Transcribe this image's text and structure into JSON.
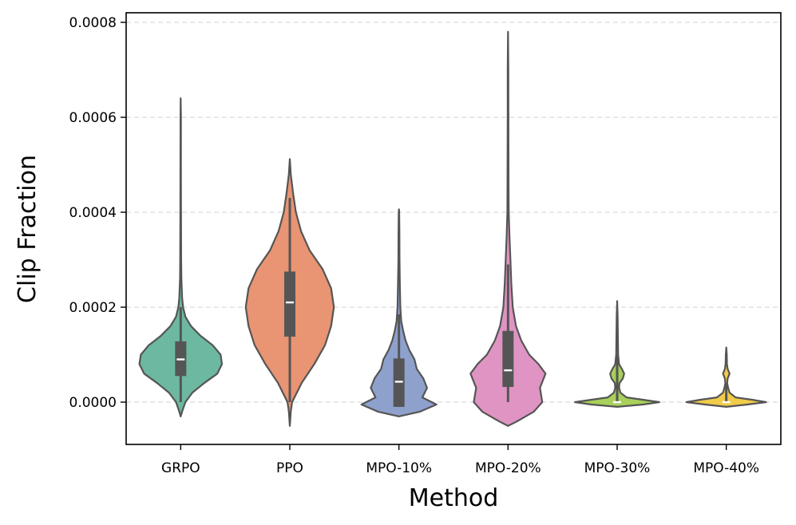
{
  "chart_data": {
    "type": "violin",
    "title": "",
    "xlabel": "Method",
    "ylabel": "Clip Fraction",
    "ylim": [
      -8.8e-05,
      0.000822
    ],
    "yticks": [
      0.0,
      0.0002,
      0.0004,
      0.0006,
      0.0008
    ],
    "ytick_labels": [
      "0.0000",
      "0.0002",
      "0.0004",
      "0.0006",
      "0.0008"
    ],
    "grid": "y-dashed",
    "categories": [
      "GRPO",
      "PPO",
      "MPO-10%",
      "MPO-20%",
      "MPO-30%",
      "MPO-40%"
    ],
    "series": [
      {
        "name": "GRPO",
        "color": "#6db8a1",
        "min": -3e-05,
        "max": 0.00064,
        "q1": 5.5e-05,
        "median": 9e-05,
        "q3": 0.000128,
        "whisker_low": 0.0,
        "whisker_high": 0.0002,
        "density": [
          [
            -3e-05,
            0
          ],
          [
            -2e-05,
            0.03
          ],
          [
            0.0,
            0.1
          ],
          [
            2e-05,
            0.25
          ],
          [
            4e-05,
            0.5
          ],
          [
            6e-05,
            0.78
          ],
          [
            8e-05,
            0.88
          ],
          [
            0.0001,
            0.85
          ],
          [
            0.00012,
            0.68
          ],
          [
            0.00014,
            0.42
          ],
          [
            0.00016,
            0.22
          ],
          [
            0.00018,
            0.1
          ],
          [
            0.0002,
            0.05
          ],
          [
            0.00022,
            0.03
          ],
          [
            0.00026,
            0.015
          ],
          [
            0.0003,
            0.01
          ],
          [
            0.0004,
            0.007
          ],
          [
            0.0005,
            0.005
          ],
          [
            0.0006,
            0.004
          ],
          [
            0.00064,
            0
          ]
        ]
      },
      {
        "name": "PPO",
        "color": "#e99473",
        "min": -5e-05,
        "max": 0.000512,
        "q1": 0.000138,
        "median": 0.00021,
        "q3": 0.000275,
        "whisker_low": 0.0,
        "whisker_high": 0.00043,
        "density": [
          [
            -5e-05,
            0
          ],
          [
            -2e-05,
            0.02
          ],
          [
            0.0,
            0.05
          ],
          [
            4e-05,
            0.25
          ],
          [
            8e-05,
            0.52
          ],
          [
            0.00012,
            0.75
          ],
          [
            0.00016,
            0.88
          ],
          [
            0.0002,
            0.94
          ],
          [
            0.00024,
            0.88
          ],
          [
            0.00028,
            0.7
          ],
          [
            0.00032,
            0.42
          ],
          [
            0.00036,
            0.24
          ],
          [
            0.0004,
            0.13
          ],
          [
            0.00044,
            0.07
          ],
          [
            0.00048,
            0.02
          ],
          [
            0.000512,
            0
          ]
        ]
      },
      {
        "name": "MPO-10%",
        "color": "#8ea1cc",
        "min": -3e-05,
        "max": 0.000406,
        "q1": -1e-05,
        "median": 4.3e-05,
        "q3": 9.2e-05,
        "whisker_low": -1e-05,
        "whisker_high": 0.000185,
        "density": [
          [
            -3e-05,
            0
          ],
          [
            -2e-05,
            0.45
          ],
          [
            -5e-06,
            0.8
          ],
          [
            1e-05,
            0.5
          ],
          [
            3e-05,
            0.6
          ],
          [
            5e-05,
            0.52
          ],
          [
            7e-05,
            0.38
          ],
          [
            9e-05,
            0.33
          ],
          [
            0.00011,
            0.22
          ],
          [
            0.00013,
            0.14
          ],
          [
            0.00015,
            0.09
          ],
          [
            0.00017,
            0.05
          ],
          [
            0.0002,
            0.03
          ],
          [
            0.00025,
            0.02
          ],
          [
            0.0003,
            0.012
          ],
          [
            0.00035,
            0.01
          ],
          [
            0.0004,
            0.005
          ],
          [
            0.000406,
            0
          ]
        ]
      },
      {
        "name": "MPO-20%",
        "color": "#e094c3",
        "min": -5e-05,
        "max": 0.00078,
        "q1": 3.2e-05,
        "median": 6.7e-05,
        "q3": 0.00015,
        "whisker_low": 0.0,
        "whisker_high": 0.00029,
        "density": [
          [
            -5e-05,
            0
          ],
          [
            -4e-05,
            0.2
          ],
          [
            -2e-05,
            0.55
          ],
          [
            0.0,
            0.73
          ],
          [
            3e-05,
            0.68
          ],
          [
            6e-05,
            0.8
          ],
          [
            8e-05,
            0.65
          ],
          [
            0.0001,
            0.45
          ],
          [
            0.00013,
            0.28
          ],
          [
            0.00016,
            0.17
          ],
          [
            0.0002,
            0.1
          ],
          [
            0.00025,
            0.07
          ],
          [
            0.0003,
            0.05
          ],
          [
            0.00035,
            0.03
          ],
          [
            0.0004,
            0.015
          ],
          [
            0.00045,
            0.012
          ],
          [
            0.0005,
            0.01
          ],
          [
            0.0006,
            0.008
          ],
          [
            0.0007,
            0.007
          ],
          [
            0.00078,
            0
          ]
        ]
      },
      {
        "name": "MPO-30%",
        "color": "#a8d05b",
        "min": -1e-05,
        "max": 0.000213,
        "q1": 0.0,
        "median": 0.0,
        "q3": 0.0,
        "whisker_low": 0.0,
        "whisker_high": 0.0001,
        "density": [
          [
            -1e-05,
            0
          ],
          [
            -5e-06,
            0.55
          ],
          [
            0.0,
            0.9
          ],
          [
            5e-06,
            0.55
          ],
          [
            1e-05,
            0.2
          ],
          [
            2e-05,
            0.07
          ],
          [
            3e-05,
            0.04
          ],
          [
            4e-05,
            0.05
          ],
          [
            5e-05,
            0.12
          ],
          [
            6e-05,
            0.15
          ],
          [
            7e-05,
            0.1
          ],
          [
            8e-05,
            0.04
          ],
          [
            0.0001,
            0.02
          ],
          [
            0.00014,
            0.015
          ],
          [
            0.00018,
            0.01
          ],
          [
            0.000213,
            0
          ]
        ]
      },
      {
        "name": "MPO-40%",
        "color": "#f1cb4a",
        "min": -1e-05,
        "max": 0.000115,
        "q1": 0.0,
        "median": 0.0,
        "q3": 0.0,
        "whisker_low": 0.0,
        "whisker_high": 4e-05,
        "density": [
          [
            -1e-05,
            0
          ],
          [
            -5e-06,
            0.45
          ],
          [
            0.0,
            0.85
          ],
          [
            5e-06,
            0.55
          ],
          [
            1e-05,
            0.2
          ],
          [
            2e-05,
            0.07
          ],
          [
            3e-05,
            0.04
          ],
          [
            4e-05,
            0.02
          ],
          [
            5e-05,
            0.03
          ],
          [
            6e-05,
            0.07
          ],
          [
            7e-05,
            0.03
          ],
          [
            8e-05,
            0.015
          ],
          [
            0.0001,
            0.01
          ],
          [
            0.000115,
            0
          ]
        ]
      }
    ]
  }
}
